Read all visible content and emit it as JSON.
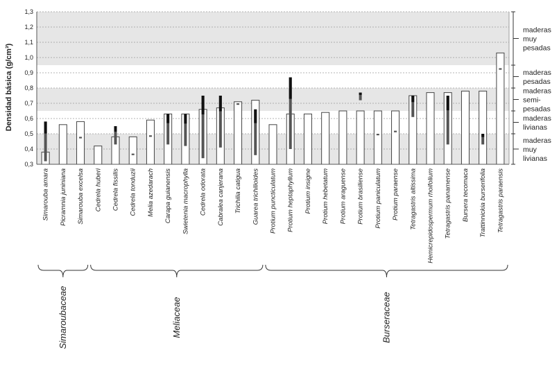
{
  "chart_data": {
    "type": "bar",
    "title": "",
    "ylabel": "Densidad básica (g/cm³)",
    "xlabel": "",
    "ylim": [
      0.3,
      1.3
    ],
    "yticks": [
      "0,3",
      "0,4",
      "0,5",
      "0,6",
      "0,7",
      "0,8",
      "0,9",
      "1,0",
      "1,1",
      "1,2",
      "1,3"
    ],
    "categories": [
      "Simarouba amara",
      "Picramnia juniniana",
      "Simarouba excelsa",
      "Cedrela huberi",
      "Cedrela fissilis",
      "Cedrela tonduzii",
      "Melia azedarach",
      "Carapa guianensis",
      "Swietenia macrophylla",
      "Cedrela odorata",
      "Cabralea canjerana",
      "Trichilia catigua",
      "Guarea trichilioides",
      "Protium puncticulatum",
      "Protium heptaphyllum",
      "Protium insigne",
      "Protium hebetatum",
      "Protium araguense",
      "Protium brasiliense",
      "Protium paniculatum",
      "Protium paraense",
      "Tetragastris altissima",
      "Hemicrepidospermum rhoifolium",
      "Tetragastris panamense",
      "Bursera tecomaca",
      "Trattinnickia burserifolia",
      "Tetragastris paraensis"
    ],
    "values": [
      0.38,
      0.56,
      0.58,
      0.42,
      0.48,
      0.48,
      0.59,
      0.63,
      0.63,
      0.66,
      0.67,
      0.71,
      0.72,
      0.56,
      0.63,
      0.63,
      0.64,
      0.65,
      0.65,
      0.65,
      0.65,
      0.75,
      0.77,
      0.77,
      0.78,
      0.78,
      1.03
    ],
    "ranges": [
      [
        0.32,
        0.58
      ],
      null,
      [
        0.47,
        0.48
      ],
      null,
      [
        0.43,
        0.55
      ],
      [
        0.36,
        0.37
      ],
      [
        0.48,
        0.49
      ],
      [
        0.43,
        0.63
      ],
      [
        0.42,
        0.63
      ],
      [
        0.34,
        0.75
      ],
      [
        0.41,
        0.75
      ],
      [
        0.69,
        0.7
      ],
      [
        0.36,
        0.66
      ],
      null,
      [
        0.4,
        0.87
      ],
      null,
      null,
      null,
      [
        0.72,
        0.77
      ],
      [
        0.49,
        0.5
      ],
      [
        0.51,
        0.52
      ],
      [
        0.61,
        0.75
      ],
      null,
      [
        0.43,
        0.75
      ],
      null,
      [
        0.43,
        0.5
      ],
      [
        0.92,
        0.93
      ]
    ],
    "density_classes": [
      {
        "lines": [
          "maderas",
          "muy",
          "livianas"
        ],
        "range": [
          0.3,
          0.5
        ]
      },
      {
        "lines": [
          "maderas",
          "livianas"
        ],
        "range": [
          0.5,
          0.65
        ]
      },
      {
        "lines": [
          "maderas",
          "semi-",
          "pesadas"
        ],
        "range": [
          0.65,
          0.8
        ]
      },
      {
        "lines": [
          "maderas",
          "pesadas"
        ],
        "range": [
          0.8,
          0.95
        ]
      },
      {
        "lines": [
          "maderas",
          "muy",
          "pesadas"
        ],
        "range": [
          0.95,
          1.3
        ]
      }
    ],
    "families": [
      {
        "name": "Simaroubaceae",
        "start": 0,
        "end": 2
      },
      {
        "name": "Meliaceae",
        "start": 3,
        "end": 12
      },
      {
        "name": "Burseraceae",
        "start": 13,
        "end": 26
      }
    ],
    "colors": {
      "band": "#e6e6e6",
      "bar_fill": "#ffffff",
      "bar_stroke": "#444444",
      "range_dark": "#111111",
      "range_mid": "#555555",
      "grid": "#9a9a9a"
    }
  }
}
